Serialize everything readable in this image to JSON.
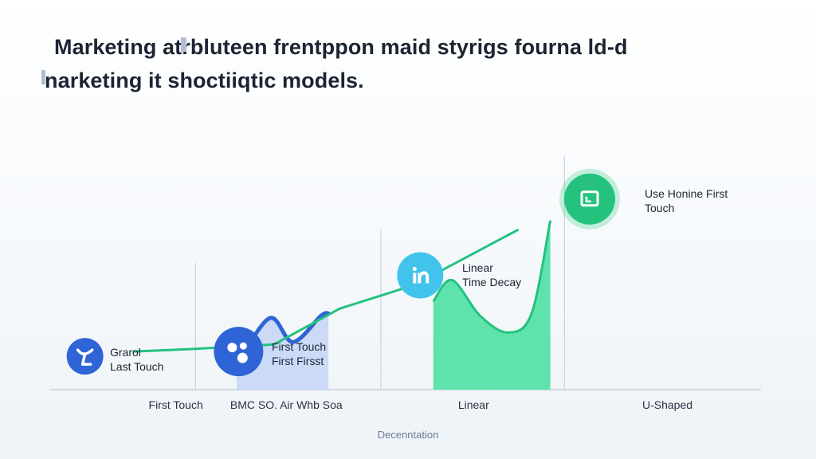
{
  "title": {
    "line1": "Marketing atrbluteen frentppon maid styrigs fourna ld-d",
    "line2": "narketing it shoctiiqtic models."
  },
  "colors": {
    "blue": "#2f64d6",
    "blue_fill": "#c4d5f7",
    "green": "#24c27d",
    "green_fill": "#5ee3ad",
    "sky": "#42c3ec",
    "axis": "#c4cbd6"
  },
  "chart_data": {
    "type": "area",
    "categories": [
      "First Touch",
      "BMC  SO. Air  Whb  Soa",
      "Linear",
      "U-Shaped"
    ],
    "xlabel": "Decenntation",
    "series": [
      {
        "values": [
          [
            2.0,
            0.1
          ],
          [
            2.35,
            0.3
          ],
          [
            2.6,
            0.2
          ],
          [
            2.9,
            0.31
          ],
          [
            2.98,
            0.32
          ]
        ]
      },
      {
        "values": [
          [
            4.1,
            0.37
          ],
          [
            4.3,
            0.46
          ],
          [
            4.6,
            0.31
          ],
          [
            4.9,
            0.24
          ],
          [
            5.15,
            0.32
          ],
          [
            5.35,
            0.71
          ]
        ]
      },
      {
        "values": [
          [
            0.9,
            0.16
          ],
          [
            1.5,
            0.17
          ],
          [
            2.4,
            0.19
          ],
          [
            3.1,
            0.34
          ],
          [
            3.9,
            0.44
          ],
          [
            5.0,
            0.67
          ]
        ]
      }
    ],
    "annotations": [
      {
        "icon": "person-icon",
        "lines": [
          "Grarol",
          "Last Touch"
        ]
      },
      {
        "icon": "bubbles-icon",
        "lines": [
          "First Touch",
          "First Firsst"
        ]
      },
      {
        "icon": "linkedin-icon",
        "lines": [
          "Linear",
          "Time Decay"
        ]
      },
      {
        "icon": "screen-icon",
        "lines": [
          "Use Honine First",
          "Touch"
        ]
      }
    ]
  }
}
